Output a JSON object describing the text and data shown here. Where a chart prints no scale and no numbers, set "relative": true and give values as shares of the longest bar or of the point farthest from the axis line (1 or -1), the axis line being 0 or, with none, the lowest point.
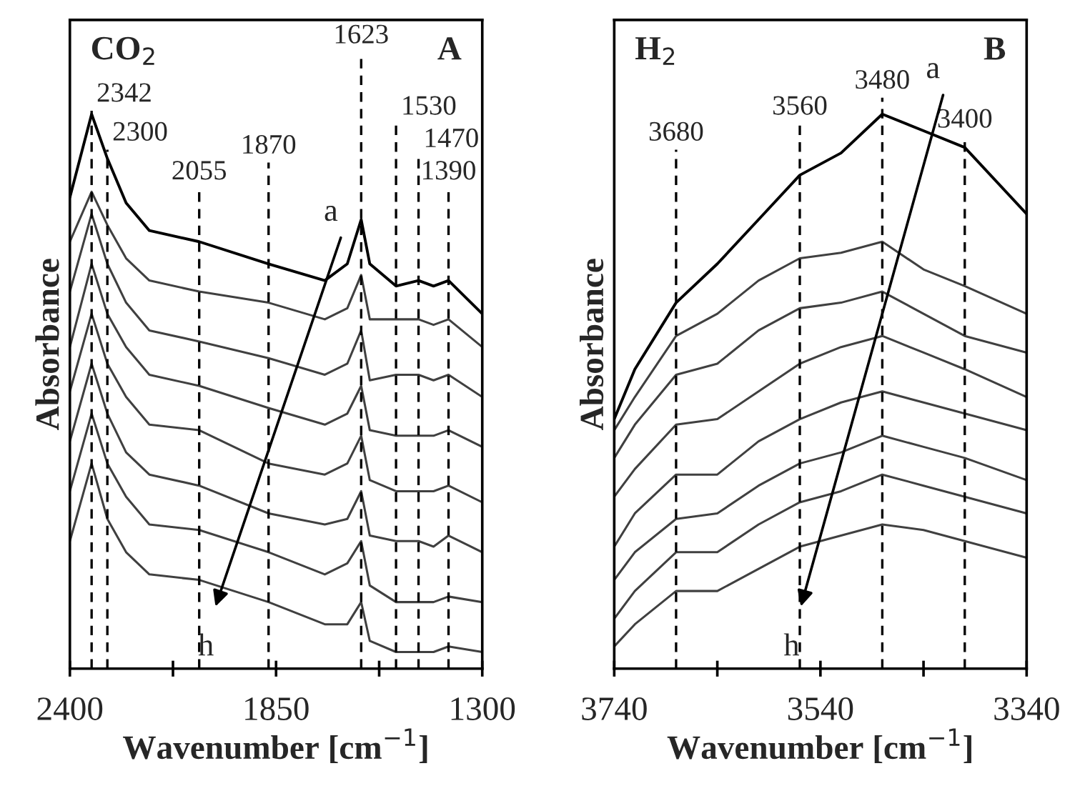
{
  "chart_data": [
    {
      "type": "line",
      "relative": true,
      "xlabel": "Wavenumber [cm$^{−1}$]",
      "ylabel": "Absorbance",
      "grid": false,
      "line_style": "solid",
      "marker": "none",
      "xlim": [
        2400,
        1300
      ],
      "xticks": [
        2400,
        {
          "value": 2125,
          "label": null
        },
        1850,
        {
          "value": 1575,
          "label": null
        },
        1300
      ],
      "x": [
        2400,
        2342,
        2300,
        2250,
        2188,
        2055,
        1870,
        1720,
        1660,
        1623,
        1600,
        1530,
        1470,
        1430,
        1390,
        1300
      ],
      "series": [
        {
          "color": "#000000",
          "values": [
            0.85,
            1.0,
            0.92,
            0.84,
            0.79,
            0.77,
            0.73,
            0.7,
            0.73,
            0.81,
            0.73,
            0.69,
            0.7,
            0.69,
            0.7,
            0.64
          ]
        },
        {
          "color": "#404040",
          "values": [
            0.77,
            0.86,
            0.8,
            0.74,
            0.7,
            0.68,
            0.66,
            0.63,
            0.65,
            0.71,
            0.63,
            0.63,
            0.63,
            0.62,
            0.63,
            0.58
          ]
        },
        {
          "color": "#404040",
          "values": [
            0.68,
            0.82,
            0.73,
            0.66,
            0.61,
            0.59,
            0.56,
            0.53,
            0.55,
            0.61,
            0.52,
            0.53,
            0.53,
            0.52,
            0.53,
            0.49
          ]
        },
        {
          "color": "#404040",
          "values": [
            0.58,
            0.73,
            0.64,
            0.58,
            0.53,
            0.51,
            0.47,
            0.44,
            0.46,
            0.51,
            0.43,
            0.42,
            0.42,
            0.42,
            0.43,
            0.4
          ]
        },
        {
          "color": "#404040",
          "values": [
            0.5,
            0.64,
            0.55,
            0.49,
            0.44,
            0.43,
            0.37,
            0.35,
            0.37,
            0.42,
            0.34,
            0.32,
            0.32,
            0.32,
            0.33,
            0.3
          ]
        },
        {
          "color": "#404040",
          "values": [
            0.41,
            0.55,
            0.46,
            0.39,
            0.35,
            0.33,
            0.28,
            0.26,
            0.27,
            0.32,
            0.24,
            0.23,
            0.23,
            0.22,
            0.24,
            0.21
          ]
        },
        {
          "color": "#404040",
          "values": [
            0.32,
            0.46,
            0.37,
            0.31,
            0.26,
            0.25,
            0.21,
            0.17,
            0.19,
            0.23,
            0.15,
            0.12,
            0.12,
            0.12,
            0.13,
            0.12
          ]
        },
        {
          "color": "#404040",
          "values": [
            0.23,
            0.37,
            0.27,
            0.21,
            0.17,
            0.16,
            0.12,
            0.08,
            0.08,
            0.12,
            0.05,
            0.03,
            0.03,
            0.03,
            0.04,
            0.03
          ]
        }
      ],
      "ref_lines": [
        {
          "axis": "x",
          "value": 2342,
          "label": "2342",
          "line_style": "dashed",
          "color": "#000000"
        },
        {
          "axis": "x",
          "value": 2300,
          "label": "2300",
          "line_style": "dashed",
          "color": "#000000"
        },
        {
          "axis": "x",
          "value": 2055,
          "label": "2055",
          "line_style": "dashed",
          "color": "#000000"
        },
        {
          "axis": "x",
          "value": 1870,
          "label": "1870",
          "line_style": "dashed",
          "color": "#000000"
        },
        {
          "axis": "x",
          "value": 1623,
          "label": "1623",
          "line_style": "dashed",
          "color": "#000000"
        },
        {
          "axis": "x",
          "value": 1530,
          "label": "1530",
          "line_style": "dashed",
          "color": "#000000"
        },
        {
          "axis": "x",
          "value": 1470,
          "label": "1470",
          "line_style": "dashed",
          "color": "#000000"
        },
        {
          "axis": "x",
          "value": 1390,
          "label": "1390",
          "line_style": "dashed",
          "color": "#000000"
        }
      ],
      "annotations": [
        "CO$_{2}$",
        "A",
        "a",
        "h"
      ]
    },
    {
      "type": "line",
      "relative": true,
      "xlabel": "Wavenumber [cm$^{−1}$]",
      "ylabel": "Absorbance",
      "grid": false,
      "line_style": "solid",
      "marker": "none",
      "xlim": [
        3740,
        3340
      ],
      "xticks": [
        3740,
        {
          "value": 3640,
          "label": null
        },
        3540,
        {
          "value": 3440,
          "label": null
        },
        3340
      ],
      "x": [
        3740,
        3720,
        3680,
        3640,
        3600,
        3560,
        3520,
        3480,
        3440,
        3400,
        3340
      ],
      "series": [
        {
          "color": "#000000",
          "values": [
            0.45,
            0.54,
            0.66,
            0.73,
            0.81,
            0.89,
            0.93,
            1.0,
            0.97,
            0.94,
            0.82
          ]
        },
        {
          "color": "#404040",
          "values": [
            0.43,
            0.49,
            0.6,
            0.64,
            0.7,
            0.74,
            0.75,
            0.77,
            0.72,
            0.69,
            0.64
          ]
        },
        {
          "color": "#404040",
          "values": [
            0.38,
            0.44,
            0.53,
            0.55,
            0.61,
            0.65,
            0.66,
            0.68,
            0.64,
            0.6,
            0.57
          ]
        },
        {
          "color": "#404040",
          "values": [
            0.31,
            0.36,
            0.44,
            0.45,
            0.5,
            0.55,
            0.58,
            0.6,
            0.57,
            0.54,
            0.49
          ]
        },
        {
          "color": "#404040",
          "values": [
            0.22,
            0.28,
            0.35,
            0.35,
            0.41,
            0.45,
            0.48,
            0.5,
            0.48,
            0.46,
            0.43
          ]
        },
        {
          "color": "#404040",
          "values": [
            0.16,
            0.21,
            0.27,
            0.28,
            0.33,
            0.37,
            0.39,
            0.42,
            0.4,
            0.38,
            0.34
          ]
        },
        {
          "color": "#404040",
          "values": [
            0.09,
            0.14,
            0.21,
            0.21,
            0.26,
            0.3,
            0.32,
            0.35,
            0.33,
            0.31,
            0.28
          ]
        },
        {
          "color": "#404040",
          "values": [
            0.04,
            0.08,
            0.14,
            0.14,
            0.18,
            0.22,
            0.24,
            0.26,
            0.25,
            0.23,
            0.2
          ]
        }
      ],
      "ref_lines": [
        {
          "axis": "x",
          "value": 3680,
          "label": "3680",
          "line_style": "dashed",
          "color": "#000000"
        },
        {
          "axis": "x",
          "value": 3560,
          "label": "3560",
          "line_style": "dashed",
          "color": "#000000"
        },
        {
          "axis": "x",
          "value": 3480,
          "label": "3480",
          "line_style": "dashed",
          "color": "#000000"
        },
        {
          "axis": "x",
          "value": 3400,
          "label": "3400",
          "line_style": "dashed",
          "color": "#000000"
        }
      ],
      "annotations": [
        "H$_{2}$",
        "B",
        "a",
        "h"
      ]
    }
  ]
}
